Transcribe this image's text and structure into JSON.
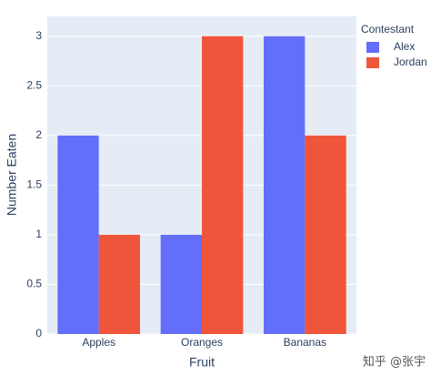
{
  "chart_data": {
    "type": "bar",
    "barmode": "group",
    "x_label": "Fruit",
    "y_label": "Number Eaten",
    "legend_title": "Contestant",
    "categories": [
      "Apples",
      "Oranges",
      "Bananas"
    ],
    "series": [
      {
        "name": "Alex",
        "color": "#636efa",
        "values": [
          2,
          1,
          3
        ]
      },
      {
        "name": "Jordan",
        "color": "#ef553b",
        "values": [
          1,
          3,
          2
        ]
      }
    ],
    "ylim": [
      0,
      3.2
    ],
    "yticks": [
      0,
      0.5,
      1,
      1.5,
      2,
      2.5,
      3
    ],
    "grid": true,
    "legend": "right"
  },
  "watermark": "知乎 @张宇"
}
